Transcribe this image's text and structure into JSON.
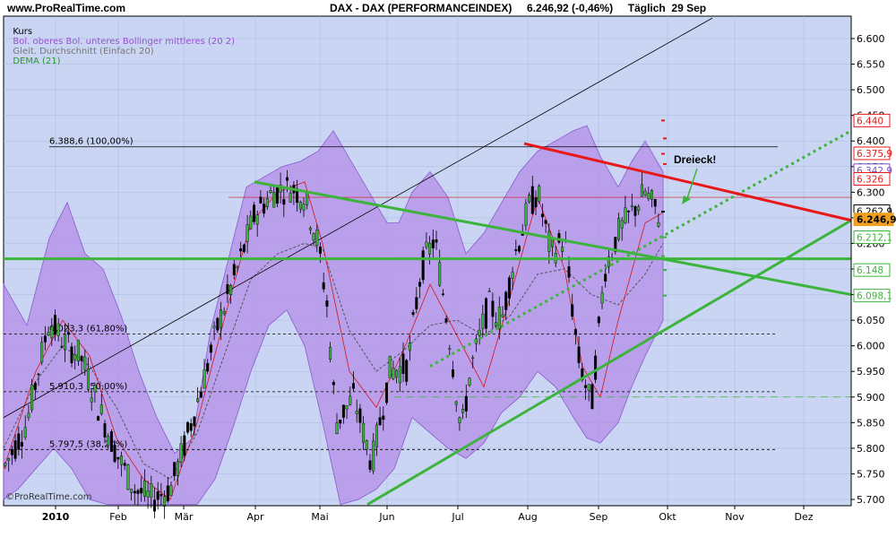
{
  "header": {
    "site": "www.ProRealTime.com",
    "title": "DAX - DAX (PERFORMANCEINDEX)     6.246,92 (-0,46%)     Täglich  29 Sep"
  },
  "legend": {
    "kurs": "Kurs",
    "bollinger": "Bol. oberes Bol. unteres Bollinger mittleres (20 2)",
    "sma": "Gleit. Durchschnitt (Einfach 20)",
    "dema": "DEMA (21)"
  },
  "watermark": "©ProRealTime.com",
  "colors": {
    "background": "#c9d5f3",
    "band": "#b48ce8",
    "green": "#3cb43c",
    "red": "#e81818"
  },
  "chart_data": {
    "type": "candlestick",
    "y_ticks": [
      "6.600",
      "6.550",
      "6.500",
      "6.450",
      "6.400",
      "6.350",
      "6.300",
      "6.250",
      "6.200",
      "6.150",
      "6.100",
      "6.050",
      "6.000",
      "5.950",
      "5.900",
      "5.850",
      "5.800",
      "5.750",
      "5.700"
    ],
    "ylim": [
      5690,
      6640
    ],
    "x_labels": [
      "2010",
      "Feb",
      "Mär",
      "Apr",
      "Mai",
      "Jun",
      "Jul",
      "Aug",
      "Sep",
      "Okt",
      "Nov",
      "Dez"
    ],
    "fib_levels": [
      {
        "label": "6.388,6 (100,00%)",
        "value": 6388.6
      },
      {
        "label": "6.023,3 (61,80%)",
        "value": 6023.3
      },
      {
        "label": "5.910,3 (50,00%)",
        "value": 5910.3
      },
      {
        "label": "5.797,5 (38,20%)",
        "value": 5797.5
      }
    ],
    "price_tags": [
      {
        "label": "6.440",
        "value": 6440,
        "color": "#e81818"
      },
      {
        "label": "6.375,9",
        "value": 6375.9,
        "color": "#e81818"
      },
      {
        "label": "6.342,9",
        "value": 6342.9,
        "color": "#7a4fc0"
      },
      {
        "label": "6.326",
        "value": 6326,
        "color": "#e81818"
      },
      {
        "label": "6.262,9",
        "value": 6262.9,
        "color": "#000000"
      },
      {
        "label": "6.246,92",
        "value": 6246.92,
        "color": "#f0a020"
      },
      {
        "label": "6.212,1",
        "value": 6212.1,
        "color": "#3cb43c"
      },
      {
        "label": "6.148",
        "value": 6148,
        "color": "#3cb43c"
      },
      {
        "label": "6.098,1",
        "value": 6098.1,
        "color": "#3cb43c"
      }
    ],
    "annotation": "Dreieck!",
    "last_value": 6246.92
  }
}
